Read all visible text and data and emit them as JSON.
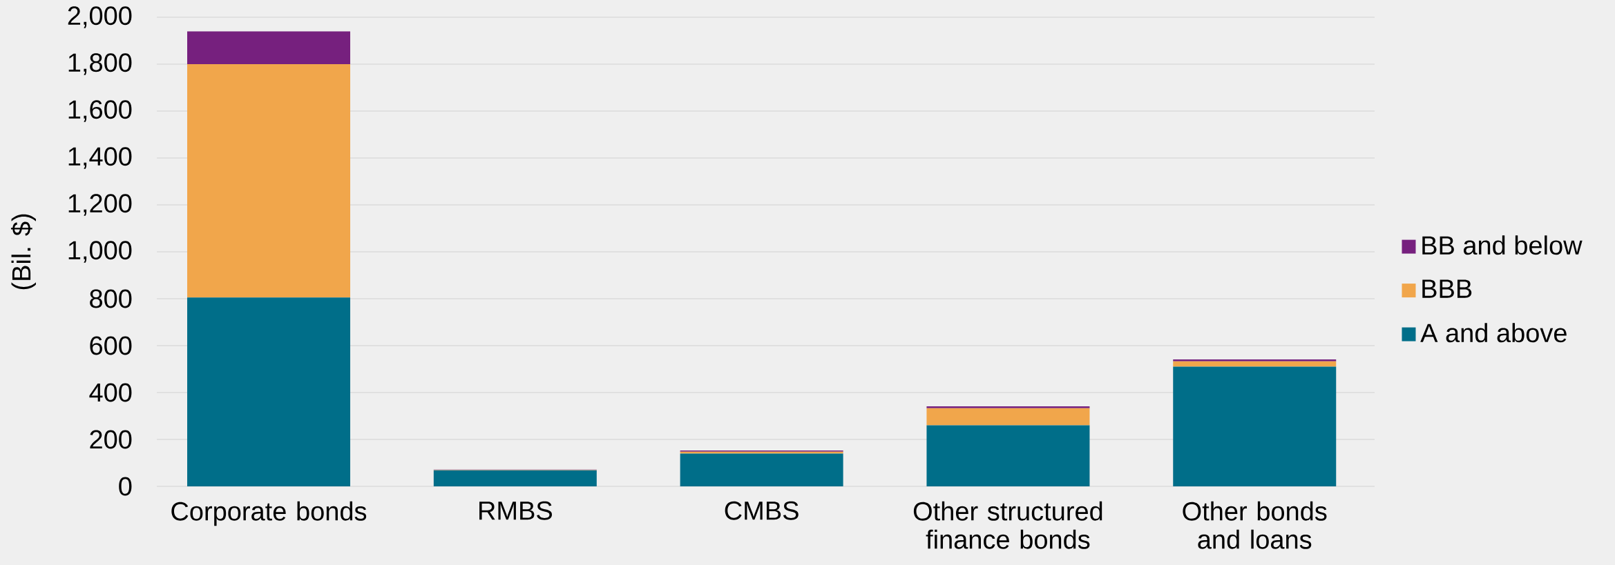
{
  "chart_data": {
    "type": "bar",
    "stacked": true,
    "ylabel": "(Bil. $)",
    "categories": [
      "Corporate bonds",
      "RMBS",
      "CMBS",
      "Other structured finance bonds",
      "Other bonds and loans"
    ],
    "series": [
      {
        "name": "A and above",
        "color": "#006e89",
        "values": [
          805,
          68,
          140,
          260,
          510
        ]
      },
      {
        "name": "BBB",
        "color": "#f1a64b",
        "values": [
          995,
          2,
          8,
          73,
          23
        ]
      },
      {
        "name": "BB and below",
        "color": "#76207e",
        "values": [
          140,
          1,
          5,
          8,
          8
        ]
      }
    ],
    "ylim": [
      0,
      2000
    ],
    "yticks": [
      0,
      200,
      400,
      600,
      800,
      {
        "value": 1000,
        "label": "1,000"
      },
      {
        "value": 1200,
        "label": "1,200"
      },
      {
        "value": 1400,
        "label": "1,400"
      },
      {
        "value": 1600,
        "label": "1,600"
      },
      {
        "value": 1800,
        "label": "1,800"
      },
      {
        "value": 2000,
        "label": "2,000"
      }
    ],
    "grid": "y",
    "legend": "right"
  }
}
